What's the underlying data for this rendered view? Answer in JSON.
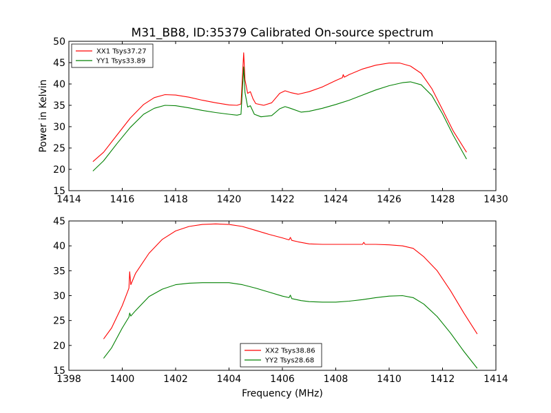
{
  "title": "M31_BB8, ID:35379 Calibrated On-source spectrum",
  "chart_data": [
    {
      "type": "line",
      "xlabel": "",
      "ylabel": "Power in Kelvin",
      "xlim": [
        1414,
        1430
      ],
      "ylim": [
        15,
        50
      ],
      "xticks": [
        1414,
        1416,
        1418,
        1420,
        1422,
        1424,
        1426,
        1428,
        1430
      ],
      "yticks": [
        15,
        20,
        25,
        30,
        35,
        40,
        45,
        50
      ],
      "grid": false,
      "legend_position": "top-left",
      "series": [
        {
          "name": "XX1 Tsys37.27",
          "color": "#ff0000",
          "points": [
            [
              1414.9,
              21.8
            ],
            [
              1415.3,
              24
            ],
            [
              1415.8,
              28
            ],
            [
              1416.3,
              32
            ],
            [
              1416.8,
              35.2
            ],
            [
              1417.2,
              36.8
            ],
            [
              1417.6,
              37.5
            ],
            [
              1418.0,
              37.4
            ],
            [
              1418.5,
              36.9
            ],
            [
              1419.0,
              36.2
            ],
            [
              1419.5,
              35.6
            ],
            [
              1420.0,
              35.1
            ],
            [
              1420.3,
              35.0
            ],
            [
              1420.45,
              35.3
            ],
            [
              1420.55,
              47.3
            ],
            [
              1420.6,
              41
            ],
            [
              1420.7,
              37.8
            ],
            [
              1420.8,
              38.2
            ],
            [
              1420.9,
              36.5
            ],
            [
              1421.0,
              35.4
            ],
            [
              1421.3,
              35.0
            ],
            [
              1421.6,
              35.6
            ],
            [
              1421.9,
              37.8
            ],
            [
              1422.1,
              38.4
            ],
            [
              1422.3,
              38.0
            ],
            [
              1422.6,
              37.6
            ],
            [
              1423.0,
              38.2
            ],
            [
              1423.5,
              39.3
            ],
            [
              1424.0,
              40.8
            ],
            [
              1424.25,
              41.5
            ],
            [
              1424.28,
              42.2
            ],
            [
              1424.32,
              41.6
            ],
            [
              1424.5,
              42.2
            ],
            [
              1425.0,
              43.5
            ],
            [
              1425.5,
              44.4
            ],
            [
              1426.0,
              44.9
            ],
            [
              1426.4,
              44.9
            ],
            [
              1426.8,
              44.2
            ],
            [
              1427.2,
              42.5
            ],
            [
              1427.6,
              38.9
            ],
            [
              1428.0,
              34
            ],
            [
              1428.4,
              29
            ],
            [
              1428.9,
              24
            ]
          ]
        },
        {
          "name": "YY1 Tsys33.89",
          "color": "#008000",
          "points": [
            [
              1414.9,
              19.6
            ],
            [
              1415.3,
              22
            ],
            [
              1415.8,
              26
            ],
            [
              1416.3,
              29.8
            ],
            [
              1416.8,
              32.9
            ],
            [
              1417.2,
              34.3
            ],
            [
              1417.6,
              35.0
            ],
            [
              1418.0,
              34.9
            ],
            [
              1418.5,
              34.4
            ],
            [
              1419.0,
              33.8
            ],
            [
              1419.5,
              33.3
            ],
            [
              1420.0,
              32.9
            ],
            [
              1420.3,
              32.7
            ],
            [
              1420.45,
              32.9
            ],
            [
              1420.55,
              44
            ],
            [
              1420.6,
              38
            ],
            [
              1420.7,
              34.6
            ],
            [
              1420.8,
              34.9
            ],
            [
              1420.95,
              32.9
            ],
            [
              1421.2,
              32.3
            ],
            [
              1421.6,
              32.6
            ],
            [
              1421.9,
              34.2
            ],
            [
              1422.1,
              34.7
            ],
            [
              1422.3,
              34.3
            ],
            [
              1422.7,
              33.4
            ],
            [
              1423.0,
              33.6
            ],
            [
              1423.5,
              34.3
            ],
            [
              1424.0,
              35.2
            ],
            [
              1424.5,
              36.2
            ],
            [
              1425.0,
              37.4
            ],
            [
              1425.5,
              38.6
            ],
            [
              1426.0,
              39.6
            ],
            [
              1426.5,
              40.3
            ],
            [
              1426.8,
              40.5
            ],
            [
              1427.2,
              39.8
            ],
            [
              1427.6,
              37.3
            ],
            [
              1428.0,
              33
            ],
            [
              1428.4,
              28
            ],
            [
              1428.9,
              22.4
            ]
          ]
        }
      ]
    },
    {
      "type": "line",
      "xlabel": "Frequency (MHz)",
      "ylabel": "",
      "xlim": [
        1398,
        1414
      ],
      "ylim": [
        15,
        45
      ],
      "xticks": [
        1398,
        1400,
        1402,
        1404,
        1406,
        1408,
        1410,
        1412,
        1414
      ],
      "yticks": [
        15,
        20,
        25,
        30,
        35,
        40,
        45
      ],
      "grid": false,
      "legend_position": "lower-center",
      "series": [
        {
          "name": "XX2 Tsys38.86",
          "color": "#ff0000",
          "points": [
            [
              1399.3,
              21.3
            ],
            [
              1399.6,
              23.5
            ],
            [
              1400.0,
              28
            ],
            [
              1400.2,
              30.8
            ],
            [
              1400.25,
              31.5
            ],
            [
              1400.28,
              34.8
            ],
            [
              1400.32,
              32.2
            ],
            [
              1400.5,
              34.5
            ],
            [
              1401.0,
              38.5
            ],
            [
              1401.5,
              41.3
            ],
            [
              1402.0,
              43
            ],
            [
              1402.5,
              43.9
            ],
            [
              1403.0,
              44.3
            ],
            [
              1403.5,
              44.4
            ],
            [
              1404.0,
              44.3
            ],
            [
              1404.5,
              43.9
            ],
            [
              1405.0,
              43.1
            ],
            [
              1405.5,
              42.3
            ],
            [
              1406.0,
              41.6
            ],
            [
              1406.25,
              41.2
            ],
            [
              1406.3,
              41.7
            ],
            [
              1406.35,
              41.1
            ],
            [
              1406.6,
              40.8
            ],
            [
              1407.0,
              40.4
            ],
            [
              1407.5,
              40.3
            ],
            [
              1408.0,
              40.3
            ],
            [
              1408.5,
              40.3
            ],
            [
              1409.0,
              40.3
            ],
            [
              1409.05,
              40.7
            ],
            [
              1409.1,
              40.3
            ],
            [
              1409.5,
              40.3
            ],
            [
              1410.0,
              40.2
            ],
            [
              1410.5,
              40
            ],
            [
              1410.9,
              39.5
            ],
            [
              1411.3,
              37.8
            ],
            [
              1411.8,
              35
            ],
            [
              1412.3,
              31
            ],
            [
              1412.8,
              26.5
            ],
            [
              1413.3,
              22.3
            ]
          ]
        },
        {
          "name": "YY2 Tsys28.68",
          "color": "#008000",
          "points": [
            [
              1399.3,
              17.4
            ],
            [
              1399.6,
              19.5
            ],
            [
              1400.0,
              23.5
            ],
            [
              1400.25,
              25.7
            ],
            [
              1400.28,
              26.5
            ],
            [
              1400.32,
              25.9
            ],
            [
              1400.5,
              27
            ],
            [
              1401.0,
              29.8
            ],
            [
              1401.5,
              31.3
            ],
            [
              1402.0,
              32.2
            ],
            [
              1402.5,
              32.5
            ],
            [
              1403.0,
              32.6
            ],
            [
              1403.5,
              32.6
            ],
            [
              1404.0,
              32.6
            ],
            [
              1404.5,
              32.2
            ],
            [
              1405.0,
              31.5
            ],
            [
              1405.5,
              30.7
            ],
            [
              1406.0,
              29.9
            ],
            [
              1406.25,
              29.6
            ],
            [
              1406.3,
              30.1
            ],
            [
              1406.35,
              29.4
            ],
            [
              1406.7,
              29
            ],
            [
              1407.0,
              28.8
            ],
            [
              1407.5,
              28.7
            ],
            [
              1408.0,
              28.7
            ],
            [
              1408.5,
              28.9
            ],
            [
              1409.0,
              29.2
            ],
            [
              1409.5,
              29.6
            ],
            [
              1410.0,
              29.9
            ],
            [
              1410.5,
              30
            ],
            [
              1410.9,
              29.6
            ],
            [
              1411.3,
              28.3
            ],
            [
              1411.8,
              25.8
            ],
            [
              1412.3,
              22.5
            ],
            [
              1412.8,
              18.8
            ],
            [
              1413.3,
              15.4
            ]
          ]
        }
      ]
    }
  ]
}
